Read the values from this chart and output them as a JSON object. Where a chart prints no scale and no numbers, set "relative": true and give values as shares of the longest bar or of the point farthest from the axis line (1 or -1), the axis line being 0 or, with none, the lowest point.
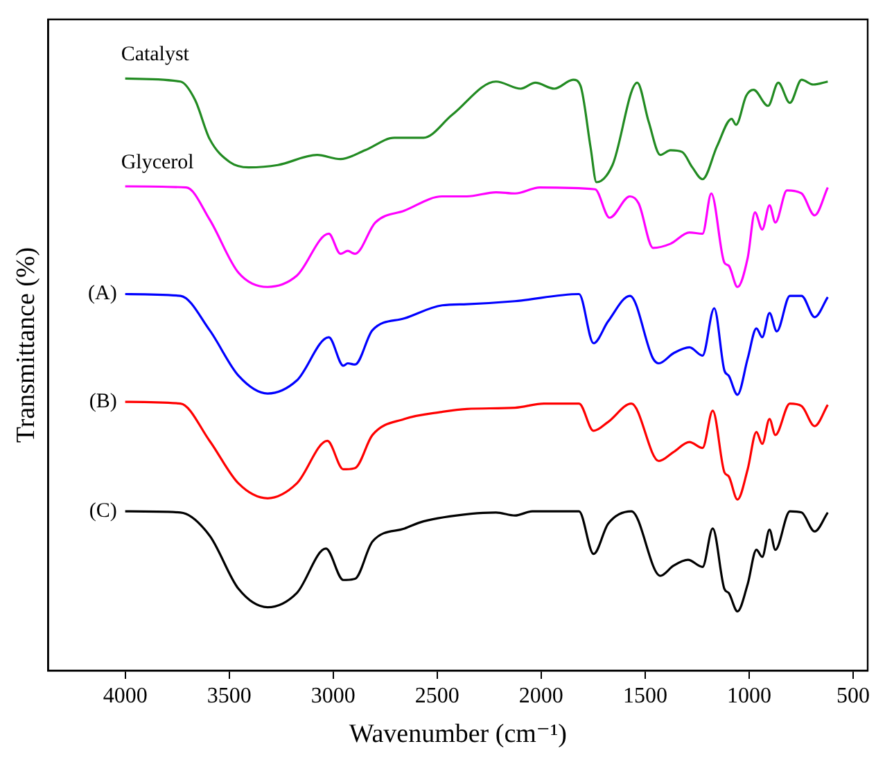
{
  "chart_data": {
    "type": "line",
    "xlabel": "Wavenumber (cm⁻¹)",
    "ylabel": "Transmittance (%)",
    "relative": true,
    "xlim": [
      4370,
      430
    ],
    "xticks": [
      4000,
      3500,
      3000,
      2500,
      2000,
      1500,
      1000,
      500
    ],
    "legend": false,
    "grid": false,
    "marker": "none",
    "series": [
      {
        "name": "Catalyst",
        "color": "#228b22",
        "x": [
          4000,
          3734,
          3664,
          3594,
          3497,
          3406,
          3266,
          3077,
          2965,
          2846,
          2706,
          2566,
          2427,
          2217,
          2098,
          2028,
          1937,
          1846,
          1811,
          1762,
          1734,
          1657,
          1538,
          1483,
          1427,
          1378,
          1322,
          1273,
          1224,
          1154,
          1084,
          1063,
          1014,
          979,
          909,
          860,
          804,
          748,
          692,
          622
        ],
        "values": [
          1.0,
          0.995,
          0.964,
          0.898,
          0.859,
          0.85,
          0.854,
          0.871,
          0.864,
          0.879,
          0.9,
          0.9,
          0.939,
          0.995,
          0.983,
          0.993,
          0.983,
          0.998,
          0.988,
          0.883,
          0.825,
          0.854,
          0.993,
          0.927,
          0.871,
          0.879,
          0.876,
          0.85,
          0.83,
          0.886,
          0.932,
          0.922,
          0.971,
          0.981,
          0.954,
          0.993,
          0.959,
          0.998,
          0.99,
          0.995
        ]
      },
      {
        "name": "Glycerol",
        "color": "#ff00ff",
        "x": [
          4000,
          3706,
          3594,
          3455,
          3315,
          3175,
          3021,
          2965,
          2930,
          2895,
          2797,
          2657,
          2476,
          2357,
          2217,
          2126,
          2007,
          1741,
          1671,
          1573,
          1531,
          1462,
          1378,
          1287,
          1224,
          1182,
          1119,
          1098,
          1056,
          1007,
          972,
          937,
          902,
          874,
          818,
          748,
          685,
          622
        ],
        "values": [
          0.818,
          0.816,
          0.762,
          0.672,
          0.648,
          0.667,
          0.738,
          0.704,
          0.709,
          0.704,
          0.757,
          0.777,
          0.801,
          0.801,
          0.808,
          0.806,
          0.816,
          0.813,
          0.765,
          0.801,
          0.789,
          0.714,
          0.721,
          0.74,
          0.738,
          0.806,
          0.689,
          0.684,
          0.648,
          0.697,
          0.774,
          0.745,
          0.786,
          0.757,
          0.811,
          0.806,
          0.769,
          0.816
        ]
      },
      {
        "name": "(A)",
        "color": "#0000ff",
        "x": [
          4000,
          3734,
          3594,
          3455,
          3315,
          3175,
          3021,
          2951,
          2930,
          2895,
          2811,
          2657,
          2476,
          2357,
          2126,
          1818,
          1748,
          1678,
          1573,
          1462,
          1434,
          1364,
          1287,
          1224,
          1168,
          1119,
          1098,
          1056,
          1007,
          965,
          937,
          902,
          867,
          804,
          748,
          685,
          622
        ],
        "values": [
          0.636,
          0.633,
          0.575,
          0.498,
          0.468,
          0.49,
          0.563,
          0.515,
          0.519,
          0.517,
          0.575,
          0.595,
          0.617,
          0.619,
          0.624,
          0.636,
          0.553,
          0.59,
          0.633,
          0.527,
          0.519,
          0.536,
          0.546,
          0.532,
          0.612,
          0.507,
          0.498,
          0.466,
          0.527,
          0.578,
          0.563,
          0.604,
          0.573,
          0.633,
          0.633,
          0.597,
          0.631
        ]
      },
      {
        "name": "(B)",
        "color": "#ff0000",
        "x": [
          4000,
          3734,
          3594,
          3455,
          3315,
          3175,
          3028,
          2951,
          2895,
          2811,
          2657,
          2476,
          2357,
          2126,
          1986,
          1818,
          1748,
          1678,
          1566,
          1434,
          1364,
          1287,
          1224,
          1175,
          1119,
          1098,
          1056,
          1007,
          965,
          937,
          902,
          874,
          804,
          748,
          685,
          622
        ],
        "values": [
          0.454,
          0.451,
          0.388,
          0.316,
          0.291,
          0.316,
          0.388,
          0.34,
          0.342,
          0.398,
          0.425,
          0.437,
          0.442,
          0.444,
          0.451,
          0.451,
          0.405,
          0.42,
          0.451,
          0.354,
          0.369,
          0.386,
          0.376,
          0.439,
          0.335,
          0.328,
          0.289,
          0.34,
          0.403,
          0.383,
          0.425,
          0.398,
          0.451,
          0.447,
          0.413,
          0.449
        ]
      },
      {
        "name": "(C)",
        "color": "#000000",
        "x": [
          4000,
          3734,
          3594,
          3455,
          3315,
          3175,
          3035,
          2951,
          2895,
          2811,
          2657,
          2566,
          2336,
          2217,
          2126,
          2042,
          1818,
          1748,
          1678,
          1566,
          1427,
          1364,
          1294,
          1224,
          1175,
          1119,
          1098,
          1056,
          1007,
          965,
          937,
          902,
          874,
          804,
          748,
          685,
          622
        ],
        "values": [
          0.269,
          0.267,
          0.228,
          0.138,
          0.107,
          0.131,
          0.206,
          0.153,
          0.155,
          0.218,
          0.24,
          0.252,
          0.265,
          0.267,
          0.262,
          0.269,
          0.269,
          0.197,
          0.248,
          0.269,
          0.16,
          0.177,
          0.187,
          0.175,
          0.24,
          0.138,
          0.131,
          0.1,
          0.146,
          0.204,
          0.192,
          0.238,
          0.204,
          0.269,
          0.267,
          0.235,
          0.267
        ]
      }
    ]
  }
}
